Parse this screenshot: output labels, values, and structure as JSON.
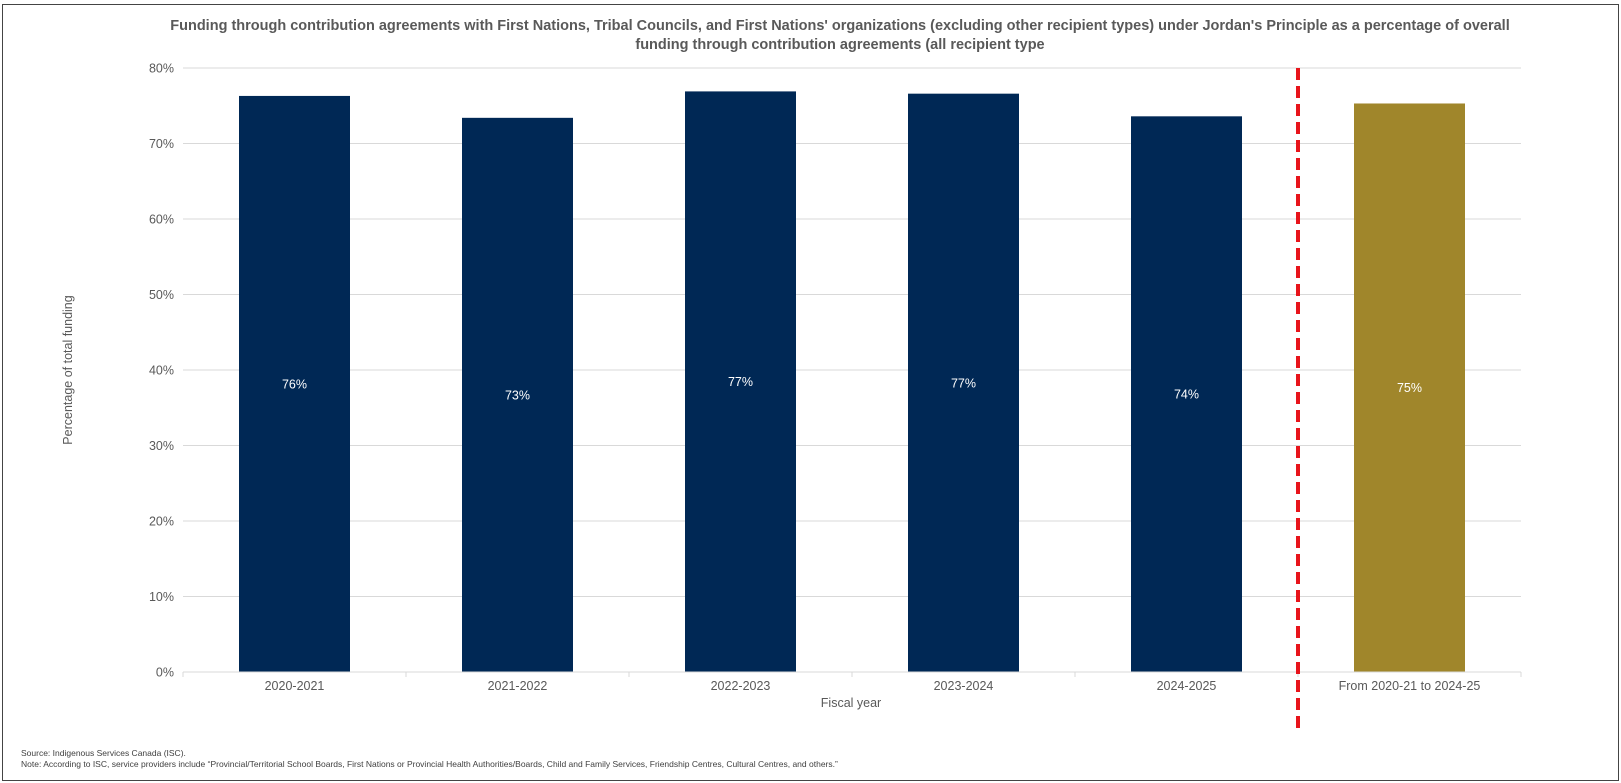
{
  "chart_data": {
    "type": "bar",
    "title": "Funding through contribution agreements with First Nations, Tribal Councils, and First Nations' organizations (excluding other recipient types) under Jordan's Principle as a percentage of overall funding through contribution agreements (all recipient type",
    "xlabel": "Fiscal year",
    "ylabel": "Percentage of total funding",
    "categories": [
      "2020-2021",
      "2021-2022",
      "2022-2023",
      "2023-2024",
      "2024-2025",
      "From 2020-21 to 2024-25"
    ],
    "values": [
      76.3,
      73.4,
      76.9,
      76.6,
      73.6,
      75.3
    ],
    "data_labels": [
      "76%",
      "73%",
      "77%",
      "77%",
      "74%",
      "75%"
    ],
    "ylim": [
      0,
      80
    ],
    "yticks": [
      0,
      10,
      20,
      30,
      40,
      50,
      60,
      70,
      80
    ],
    "ytick_labels": [
      "0%",
      "10%",
      "20%",
      "30%",
      "40%",
      "50%",
      "60%",
      "70%",
      "80%"
    ],
    "bar_colors": [
      "#002855",
      "#002855",
      "#002855",
      "#002855",
      "#002855",
      "#A0862B"
    ],
    "grid": true,
    "legend": "none",
    "divider": {
      "after_category_index": 4,
      "style": "dashed",
      "color": "#E8141B"
    }
  },
  "footer": {
    "source": "Source: Indigenous Services Canada (ISC).",
    "note": "Note: According to ISC, service providers include “Provincial/Territorial School Boards, First Nations or Provincial Health Authorities/Boards, Child and Family Services, Friendship Centres, Cultural Centres, and others.”"
  }
}
